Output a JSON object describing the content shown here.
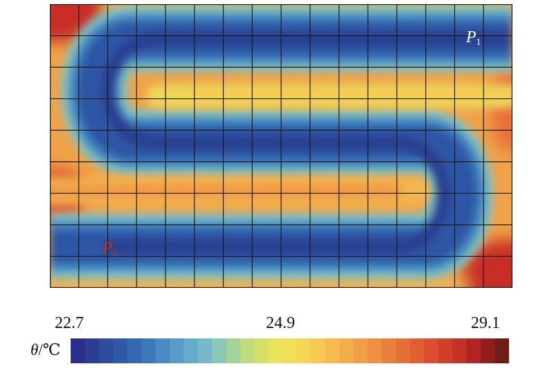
{
  "chart_data": {
    "type": "heatmap",
    "description_points": [
      {
        "id": "P1",
        "letter": "P",
        "subscript": "1",
        "color": "#ffffff"
      },
      {
        "id": "P2",
        "letter": "P",
        "subscript": "2",
        "color": "#d0271d"
      }
    ],
    "colorbar": {
      "symbol": "θ",
      "unit": "/℃",
      "min": 22.7,
      "mid": 24.9,
      "max": 29.1,
      "tick_labels": [
        "22.7",
        "24.9",
        "29.1"
      ],
      "steps": 31,
      "colors": [
        "#2b2f8a",
        "#2f4596",
        "#2f5ba8",
        "#3a74b8",
        "#4d90c6",
        "#63a9cf",
        "#7fc0c6",
        "#a4d39a",
        "#cfe06b",
        "#ece25a",
        "#f5d856",
        "#f6c452",
        "#f3ae4d",
        "#ef9646",
        "#e97d3e",
        "#e26436",
        "#d94a2e",
        "#c73328",
        "#a81f22",
        "#6e1d18"
      ]
    },
    "grid": {
      "columns": 16,
      "rows": 9
    }
  }
}
